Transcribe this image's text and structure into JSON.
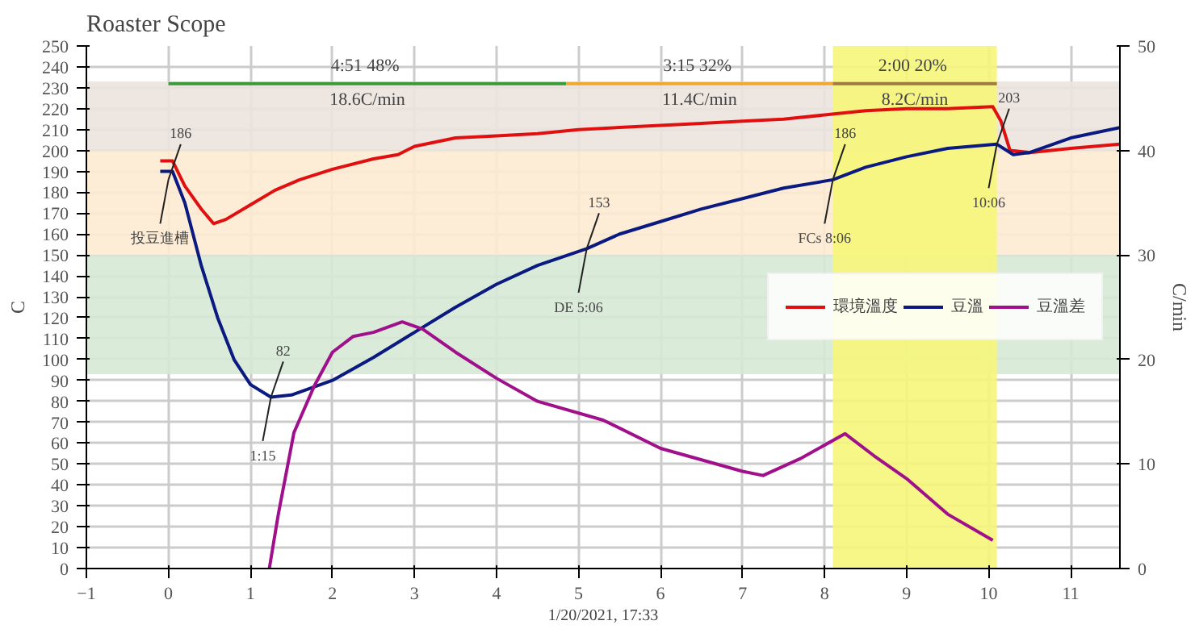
{
  "chart_data": {
    "type": "line",
    "title": "Roaster Scope",
    "xlabel": "1/20/2021, 17:33",
    "ylabel": "C",
    "y2label": "C/min",
    "xlim": [
      -1,
      11.6
    ],
    "xticks": [
      -1,
      0,
      1,
      2,
      3,
      4,
      5,
      6,
      7,
      8,
      9,
      10,
      11
    ],
    "ylim": [
      0,
      250
    ],
    "yticks": [
      0,
      10,
      20,
      30,
      40,
      50,
      60,
      70,
      80,
      90,
      100,
      110,
      120,
      130,
      140,
      150,
      160,
      170,
      180,
      190,
      200,
      210,
      220,
      230,
      240,
      250
    ],
    "y2lim": [
      0,
      50
    ],
    "y2ticks": [
      0,
      10,
      20,
      30,
      40,
      50
    ],
    "grid": true,
    "legend": "right",
    "bands": [
      {
        "axis": "y",
        "from": 93,
        "to": 150,
        "color": "#d6e9d6"
      },
      {
        "axis": "y",
        "from": 150,
        "to": 200,
        "color": "#fdebd3"
      },
      {
        "axis": "y",
        "from": 200,
        "to": 233,
        "color": "#ebe3de"
      },
      {
        "axis": "x",
        "from": 8.1,
        "to": 10.1,
        "color": "#f6f67a"
      }
    ],
    "series": [
      {
        "name": "環境溫度",
        "color": "#e01010",
        "x": [
          -0.1,
          0.05,
          0.2,
          0.4,
          0.55,
          0.7,
          1.0,
          1.3,
          1.6,
          2,
          2.5,
          2.8,
          3,
          3.5,
          4,
          4.5,
          5,
          5.5,
          6,
          6.5,
          7,
          7.5,
          8,
          8.5,
          9,
          9.5,
          10.05,
          10.15,
          10.26,
          10.5,
          11,
          11.6
        ],
        "values": [
          195,
          195,
          183,
          172,
          165,
          167,
          174,
          181,
          186,
          191,
          196,
          198,
          202,
          206,
          207,
          208,
          210,
          211,
          212,
          213,
          214,
          215,
          217,
          219,
          220,
          220,
          221,
          214,
          200,
          199,
          201,
          203
        ]
      },
      {
        "name": "豆溫",
        "color": "#0a1a80",
        "x": [
          -0.1,
          0.05,
          0.2,
          0.4,
          0.6,
          0.8,
          1.0,
          1.25,
          1.5,
          2,
          2.5,
          3,
          3.5,
          4,
          4.5,
          5.1,
          5.5,
          6,
          6.5,
          7,
          7.5,
          8.1,
          8.5,
          9,
          9.5,
          10.1,
          10.3,
          10.5,
          11,
          11.6
        ],
        "values": [
          190,
          190,
          175,
          145,
          120,
          100,
          88,
          82,
          83,
          90,
          101,
          113,
          125,
          136,
          145,
          153,
          160,
          166,
          172,
          177,
          182,
          186,
          192,
          197,
          201,
          203,
          198,
          199,
          206,
          211
        ]
      },
      {
        "name": "豆溫差",
        "color": "#a0108a",
        "axis": "y2",
        "x": [
          1.23,
          1.34,
          1.53,
          1.78,
          2.0,
          2.25,
          2.5,
          2.85,
          3.1,
          3.5,
          4,
          4.5,
          5.3,
          6,
          7,
          7.25,
          7.7,
          8.25,
          8.6,
          9,
          9.5,
          10.05
        ],
        "values": [
          0,
          5.2,
          13,
          17.5,
          20.7,
          22.2,
          22.6,
          23.6,
          22.9,
          20.7,
          18.2,
          16,
          14.2,
          11.5,
          9.3,
          8.9,
          10.5,
          12.9,
          10.8,
          8.6,
          5.2,
          2.7
        ]
      },
      {
        "color": "#3a9a3a",
        "x": [
          0,
          4.85
        ],
        "values": [
          232,
          232
        ]
      },
      {
        "color": "#f0a830",
        "x": [
          4.85,
          8.1
        ],
        "values": [
          232,
          232
        ]
      },
      {
        "color": "#a07a40",
        "x": [
          8.1,
          10.1
        ],
        "values": [
          232,
          232
        ]
      }
    ],
    "annotations": [
      {
        "text": "186",
        "x": 0,
        "y": 186
      },
      {
        "text": "投豆進槽",
        "x": 0,
        "y": 186
      },
      {
        "text": "82",
        "x": 1.25,
        "y": 82
      },
      {
        "text": "1:15",
        "x": 1.25,
        "y": 82
      },
      {
        "text": "153",
        "x": 5.1,
        "y": 153
      },
      {
        "text": "DE 5:06",
        "x": 5.1,
        "y": 153
      },
      {
        "text": "186",
        "x": 8.1,
        "y": 186
      },
      {
        "text": "FCs 8:06",
        "x": 8.1,
        "y": 186
      },
      {
        "text": "203",
        "x": 10.1,
        "y": 203
      },
      {
        "text": "10:06",
        "x": 10.1,
        "y": 203
      },
      "4:51  48%",
      "18.6C/min",
      "3:15  32%",
      "11.4C/min",
      "2:00  20%",
      "8.2C/min"
    ]
  }
}
